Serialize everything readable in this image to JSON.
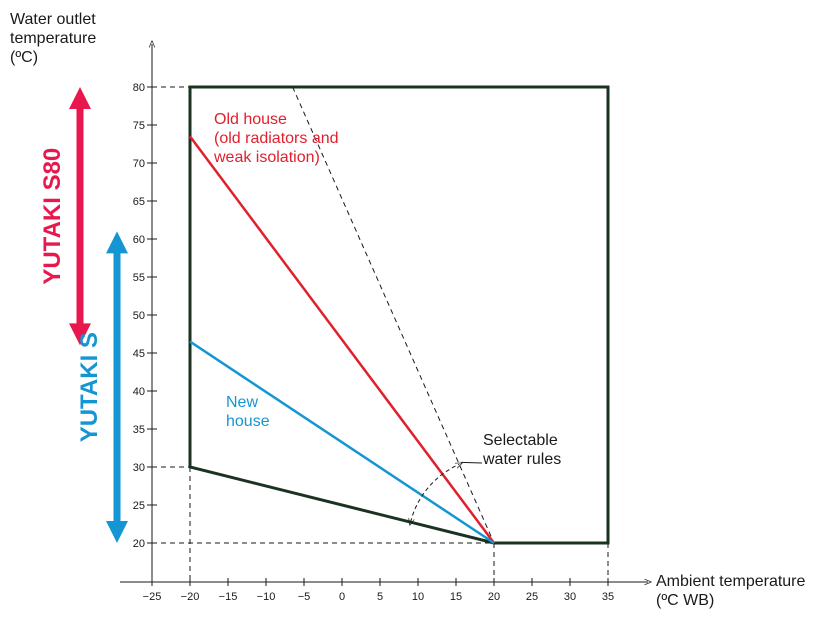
{
  "chart_data": {
    "type": "line",
    "ylabel": "Water outlet\ntemperature\n(ºC)",
    "xlabel": "Ambient temperature\n(ºC WB)",
    "xlim": [
      -25,
      35
    ],
    "ylim": [
      20,
      80
    ],
    "xticks": [
      -25,
      -20,
      -15,
      -10,
      -5,
      0,
      5,
      10,
      15,
      20,
      25,
      30,
      35
    ],
    "yticks": [
      20,
      25,
      30,
      35,
      40,
      45,
      50,
      55,
      60,
      65,
      70,
      75,
      80
    ],
    "xtick_labels": [
      "−25",
      "−20",
      "−15",
      "−10",
      "−5",
      "0",
      "5",
      "10",
      "15",
      "20",
      "25",
      "30",
      "35"
    ],
    "ytick_labels": [
      "20",
      "25",
      "30",
      "35",
      "40",
      "45",
      "50",
      "55",
      "60",
      "65",
      "70",
      "75",
      "80"
    ],
    "operating_range": [
      [
        -20,
        80
      ],
      [
        35,
        80
      ],
      [
        35,
        20
      ],
      [
        20,
        20
      ],
      [
        -20,
        30
      ]
    ],
    "series": [
      {
        "name": "Old house\n(old radiators and\nweak isolation)",
        "color": "#e0202e",
        "x": [
          -20,
          20
        ],
        "y": [
          73.5,
          20
        ]
      },
      {
        "name": "New\nhouse",
        "color": "#1596d4",
        "x": [
          -20,
          20
        ],
        "y": [
          46.5,
          20
        ]
      }
    ],
    "limit_line": {
      "x": [
        -6.5,
        20
      ],
      "y": [
        80,
        20
      ]
    },
    "annotations": [
      {
        "text": "Selectable\nwater rules"
      }
    ],
    "ranges": [
      {
        "name": "YUTAKI S80",
        "color": "#e8184f",
        "from": 46,
        "to": 80
      },
      {
        "name": "YUTAKI S",
        "color": "#1596d4",
        "from": 20,
        "to": 61
      }
    ],
    "colors": {
      "frame": "#1a3320",
      "axis": "#1a1a1a",
      "guide": "#1a1a1a"
    }
  }
}
